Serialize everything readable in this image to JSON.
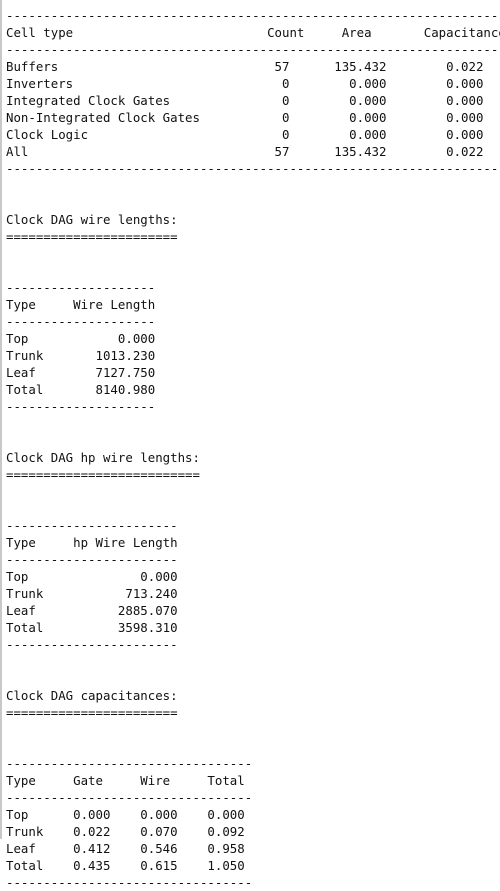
{
  "cell_table": {
    "rule": "-------------------------------------------------------------------",
    "header": "Cell type                          Count     Area       Capacitance",
    "rows": [
      "Buffers                             57      135.432        0.022",
      "Inverters                            0        0.000        0.000",
      "Integrated Clock Gates               0        0.000        0.000",
      "Non-Integrated Clock Gates           0        0.000        0.000",
      "Clock Logic                          0        0.000        0.000",
      "All                                 57      135.432        0.022"
    ]
  },
  "wire_lengths": {
    "title": "Clock DAG wire lengths:",
    "underline": "=======================",
    "rule": "--------------------",
    "header": "Type     Wire Length",
    "rows": [
      "Top            0.000",
      "Trunk       1013.230",
      "Leaf        7127.750",
      "Total       8140.980"
    ]
  },
  "hp_wire_lengths": {
    "title": "Clock DAG hp wire lengths:",
    "underline": "==========================",
    "rule": "-----------------------",
    "header": "Type     hp Wire Length",
    "rows": [
      "Top               0.000",
      "Trunk           713.240",
      "Leaf           2885.070",
      "Total          3598.310"
    ]
  },
  "capacitances": {
    "title": "Clock DAG capacitances:",
    "underline": "=======================",
    "rule": "---------------------------------",
    "header": "Type     Gate     Wire     Total",
    "rows": [
      "Top      0.000    0.000    0.000",
      "Trunk    0.022    0.070    0.092",
      "Leaf     0.412    0.546    0.958",
      "Total    0.435    0.615    1.050"
    ]
  }
}
